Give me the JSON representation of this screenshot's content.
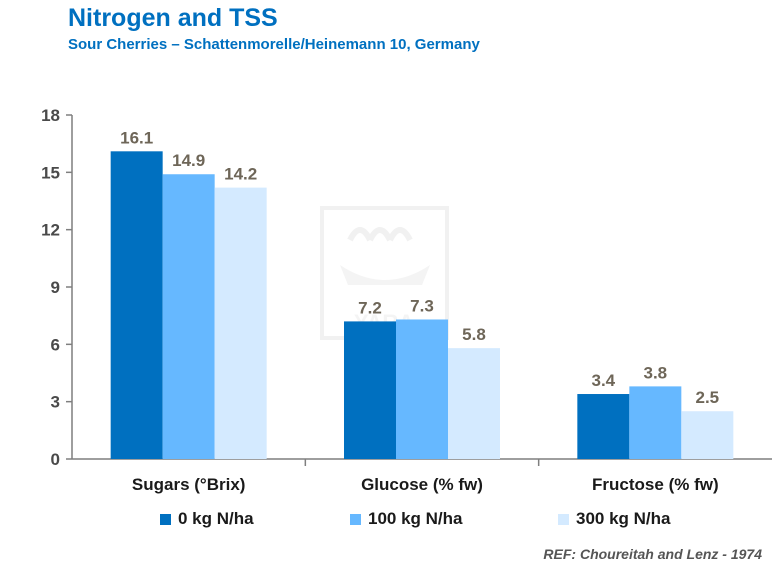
{
  "title": "Nitrogen and TSS",
  "subtitle": "Sour Cherries – Schattenmorelle/Heinemann 10, Germany",
  "reference": "REF: Choureitah and Lenz  - 1974",
  "watermark": "YARA",
  "colors": {
    "series": [
      "#0070c0",
      "#66b8ff",
      "#d4eaff"
    ],
    "title": "#0070c0",
    "axis": "#7f7f7f",
    "label": "#6e6658"
  },
  "chart_data": {
    "type": "bar",
    "categories": [
      "Sugars (°Brix)",
      "Glucose (% fw)",
      "Fructose (% fw)"
    ],
    "series": [
      {
        "name": "0 kg N/ha",
        "values": [
          16.1,
          7.2,
          3.4
        ]
      },
      {
        "name": "100 kg N/ha",
        "values": [
          14.9,
          7.3,
          3.8
        ]
      },
      {
        "name": "300 kg N/ha",
        "values": [
          14.2,
          5.8,
          2.5
        ]
      }
    ],
    "ylim": [
      0,
      18
    ],
    "yticks": [
      0,
      3,
      6,
      9,
      12,
      15,
      18
    ],
    "legend": "bottom",
    "grid": false
  }
}
